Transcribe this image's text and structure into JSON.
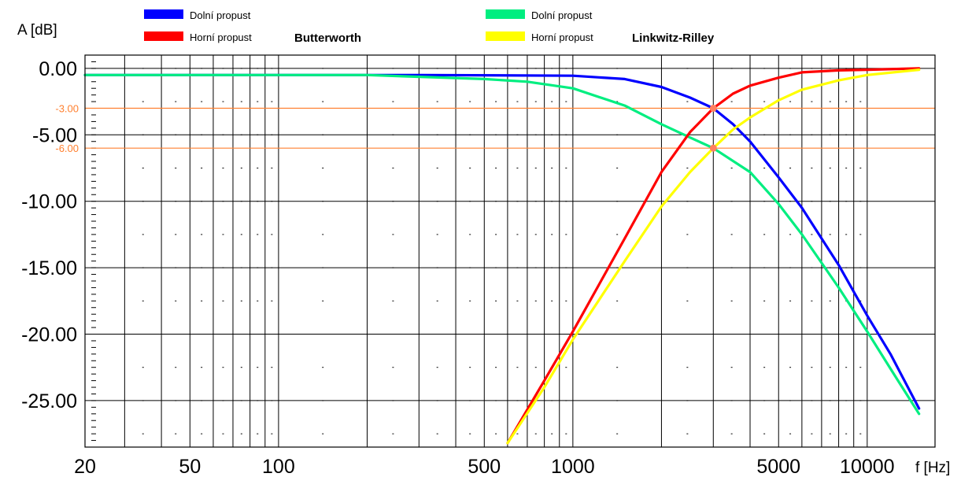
{
  "chart_data": {
    "type": "line",
    "x_scale": "log",
    "xlim": [
      22,
      17000
    ],
    "ylim": [
      -28.5,
      1.0
    ],
    "ylabel": "A  [dB]",
    "xlabel": "f [Hz]",
    "grid": true,
    "legend_position": "top",
    "x_ticks": [
      {
        "value": 20,
        "label": "20"
      },
      {
        "value": 50,
        "label": "50"
      },
      {
        "value": 100,
        "label": "100"
      },
      {
        "value": 500,
        "label": "500"
      },
      {
        "value": 1000,
        "label": "1000"
      },
      {
        "value": 5000,
        "label": "5000"
      },
      {
        "value": 10000,
        "label": "10000"
      }
    ],
    "y_ticks": [
      {
        "value": 0,
        "label": "0.00"
      },
      {
        "value": -5,
        "label": "-5.00"
      },
      {
        "value": -10,
        "label": "-10.00"
      },
      {
        "value": -15,
        "label": "-15.00"
      },
      {
        "value": -20,
        "label": "-20.00"
      },
      {
        "value": -25,
        "label": "-25.00"
      }
    ],
    "reference_lines": [
      {
        "value": -3,
        "label": "-3.00",
        "color": "#ff8030"
      },
      {
        "value": -6,
        "label": "-6.00",
        "color": "#ff8030"
      }
    ],
    "legend_groups": [
      {
        "name": "Butterworth"
      },
      {
        "name": "Linkwitz-Rilley"
      }
    ],
    "series": [
      {
        "name": "Dolní propust",
        "group": "Butterworth",
        "color": "#0000ff",
        "x": [
          22,
          100,
          300,
          1000,
          1500,
          2000,
          2500,
          3000,
          3500,
          4000,
          5000,
          6000,
          8000,
          10000,
          12000,
          15000
        ],
        "y": [
          -0.5,
          -0.5,
          -0.5,
          -0.55,
          -0.8,
          -1.4,
          -2.2,
          -3.0,
          -4.2,
          -5.5,
          -8.2,
          -10.5,
          -14.8,
          -18.6,
          -21.5,
          -25.6
        ]
      },
      {
        "name": "Horní propust",
        "group": "Butterworth",
        "color": "#ff0000",
        "x": [
          600,
          800,
          1000,
          1500,
          2000,
          2500,
          3000,
          3500,
          4000,
          5000,
          6000,
          8000,
          10000,
          15000
        ],
        "y": [
          -28.2,
          -23.5,
          -19.8,
          -12.8,
          -7.8,
          -4.8,
          -3.0,
          -1.9,
          -1.3,
          -0.7,
          -0.3,
          -0.15,
          -0.1,
          0.0
        ]
      },
      {
        "name": "Dolní propust",
        "group": "Linkwitz-Rilley",
        "color": "#00ee80",
        "x": [
          22,
          200,
          500,
          700,
          1000,
          1500,
          2000,
          2500,
          3000,
          4000,
          5000,
          6000,
          8000,
          10000,
          12000,
          15000
        ],
        "y": [
          -0.5,
          -0.5,
          -0.8,
          -1.0,
          -1.5,
          -2.8,
          -4.2,
          -5.2,
          -6.0,
          -7.8,
          -10.2,
          -12.5,
          -16.5,
          -19.8,
          -22.6,
          -26.0
        ]
      },
      {
        "name": "Horní propust",
        "group": "Linkwitz-Rilley",
        "color": "#ffff00",
        "x": [
          600,
          800,
          1000,
          1500,
          2000,
          2500,
          3000,
          3500,
          4000,
          5000,
          6000,
          8000,
          10000,
          15000
        ],
        "y": [
          -28.2,
          -24.0,
          -20.4,
          -14.5,
          -10.4,
          -7.8,
          -6.0,
          -4.6,
          -3.7,
          -2.4,
          -1.6,
          -0.9,
          -0.5,
          -0.1
        ]
      }
    ],
    "markers": [
      {
        "x": 3000,
        "y": -3.0
      },
      {
        "x": 3000,
        "y": -6.0
      }
    ]
  },
  "ui": {
    "plot_bg": "#ffffff",
    "grid_color": "#000000",
    "marker_color": "#ff8060"
  }
}
